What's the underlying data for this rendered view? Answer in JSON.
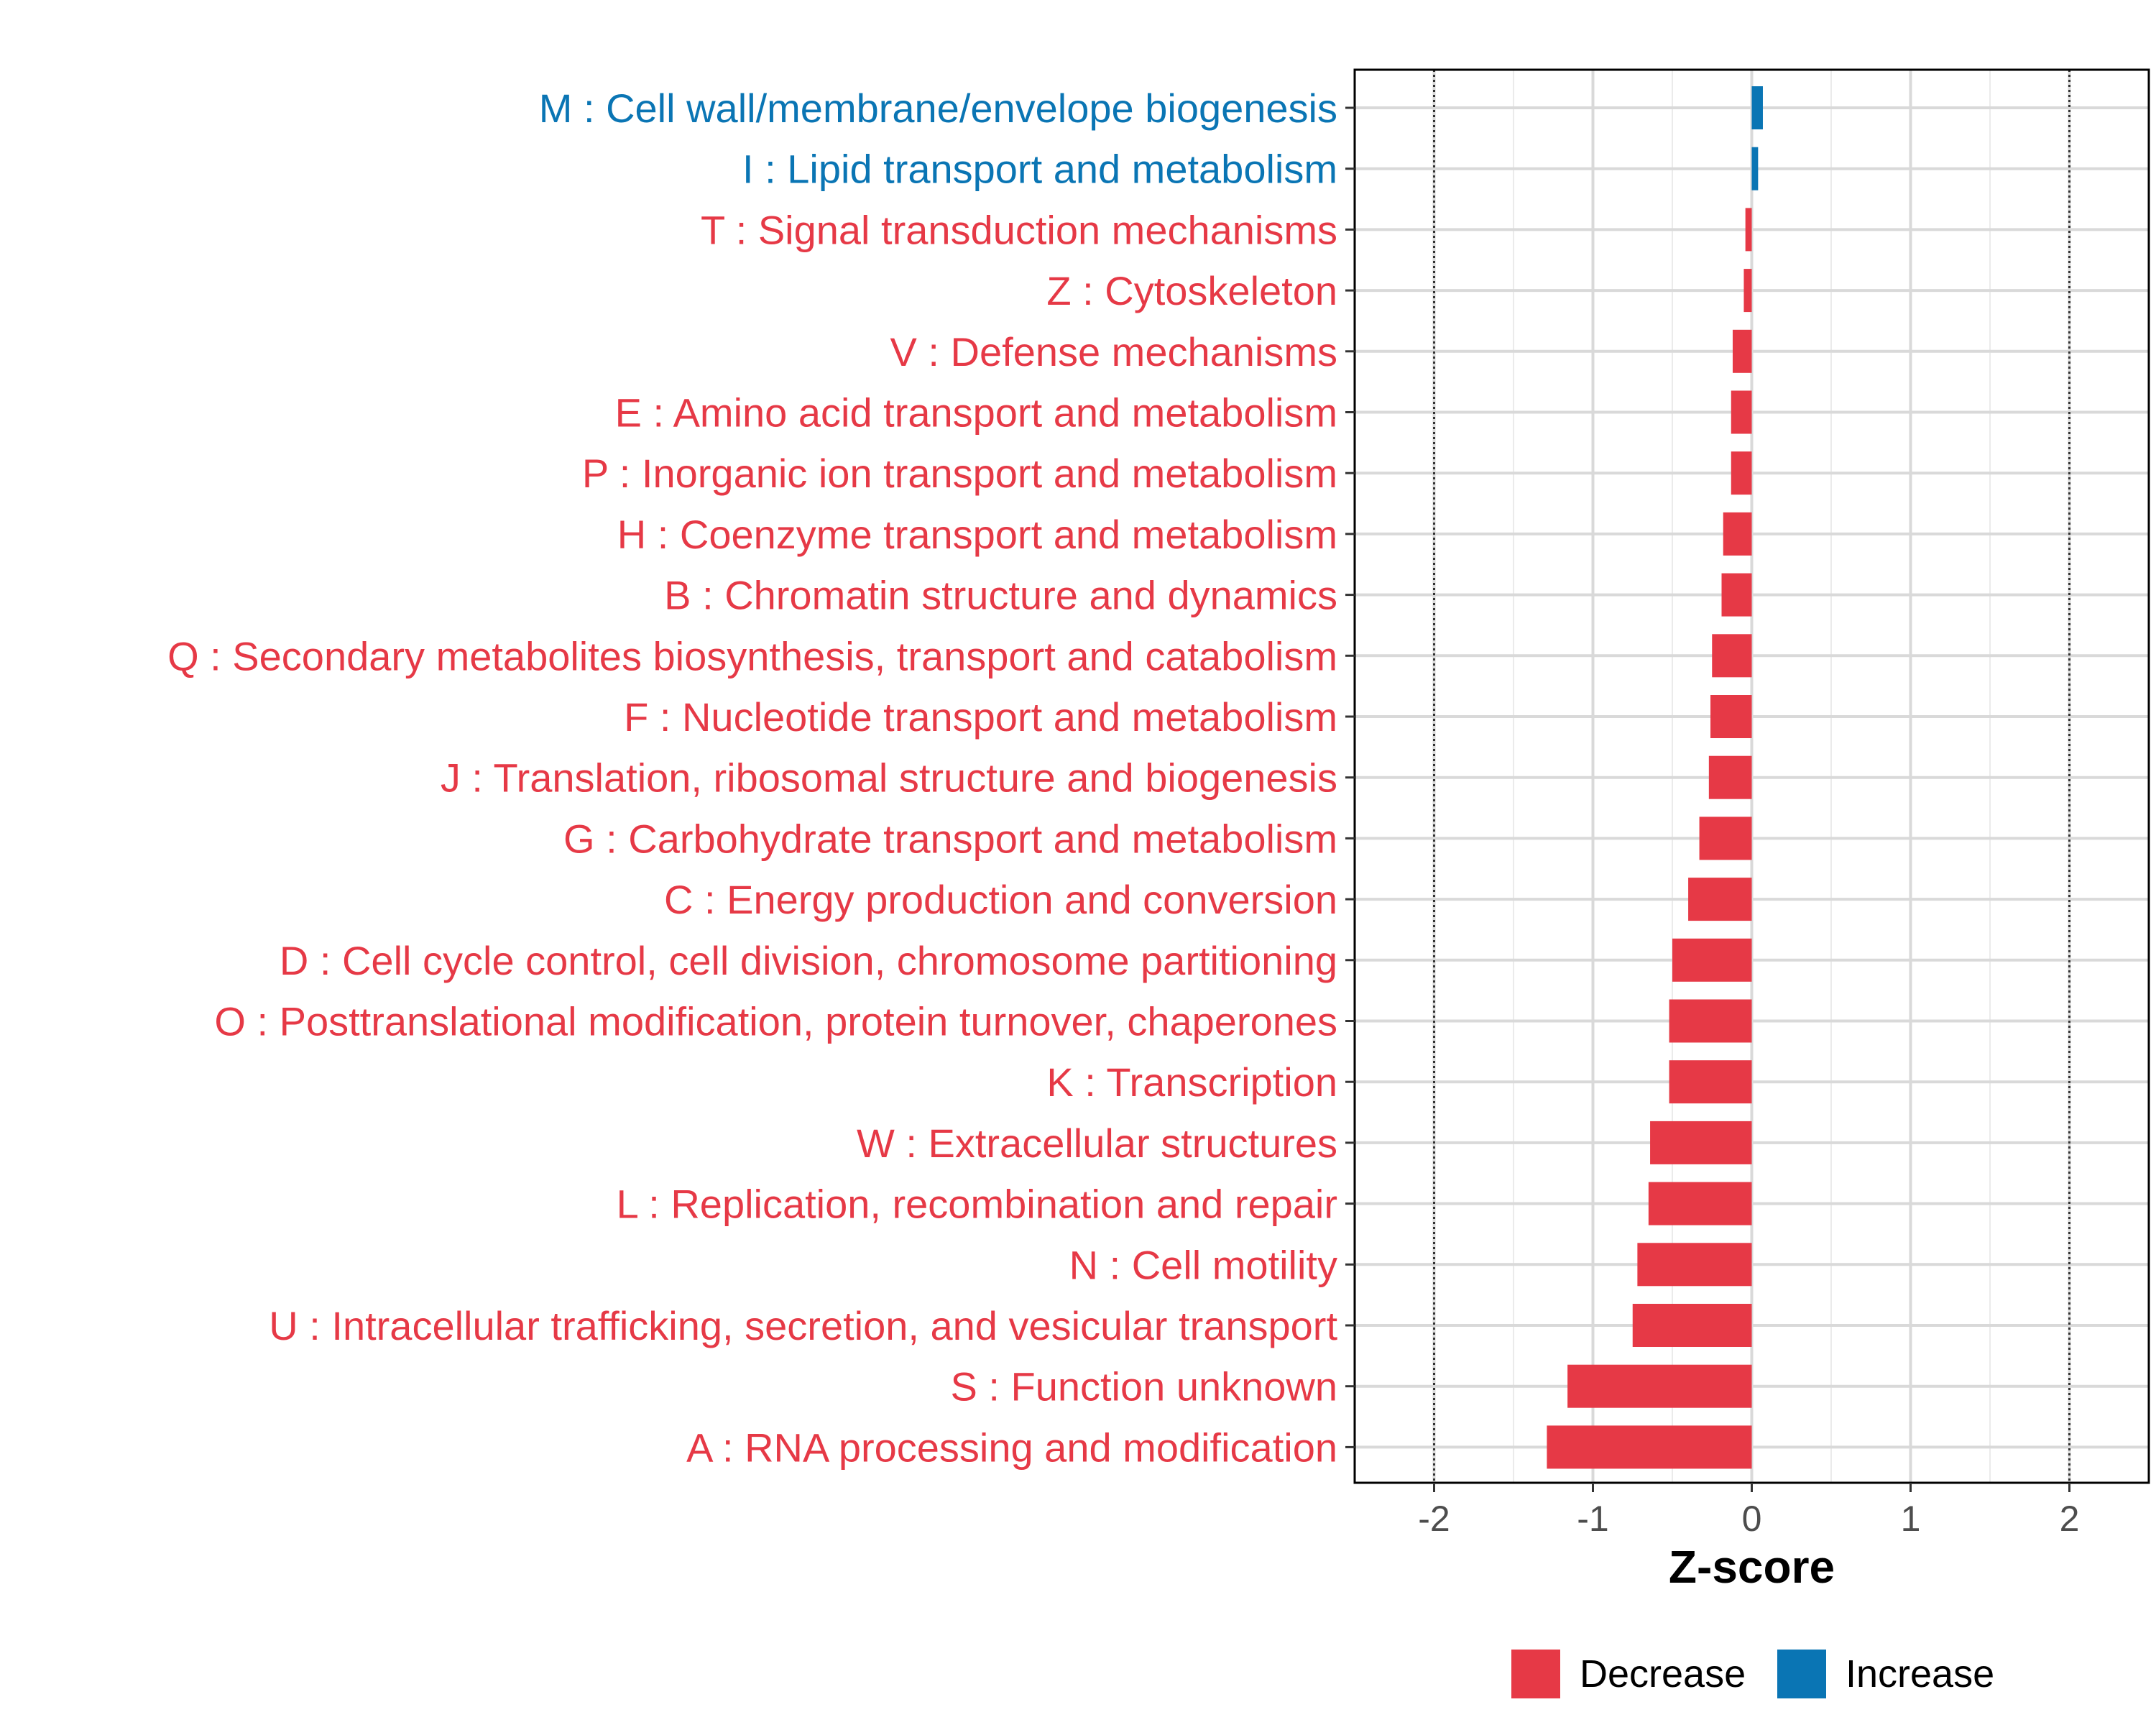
{
  "chart_data": {
    "type": "bar",
    "orientation": "horizontal",
    "xlabel": "Z-score",
    "xlim": [
      -2.5,
      2.5
    ],
    "xticks": [
      -2,
      -1,
      0,
      1,
      2
    ],
    "xtick_labels": [
      "-2",
      "-1",
      "0",
      "1",
      "2"
    ],
    "reference_lines": [
      -2,
      2
    ],
    "categories": [
      "M : Cell wall/membrane/envelope biogenesis",
      "I : Lipid transport and metabolism",
      "T : Signal transduction mechanisms",
      "Z : Cytoskeleton",
      "V : Defense mechanisms",
      "E : Amino acid transport and metabolism",
      "P : Inorganic ion transport and metabolism",
      "H : Coenzyme transport and metabolism",
      "B : Chromatin structure and dynamics",
      "Q : Secondary metabolites biosynthesis, transport and catabolism",
      "F : Nucleotide transport and metabolism",
      "J : Translation, ribosomal structure and biogenesis",
      "G : Carbohydrate transport and metabolism",
      "C : Energy production and conversion",
      "D : Cell cycle control, cell division, chromosome partitioning",
      "O : Posttranslational modification, protein turnover, chaperones",
      "K : Transcription",
      "W : Extracellular structures",
      "L : Replication, recombination and repair",
      "N : Cell motility",
      "U : Intracellular trafficking, secretion, and vesicular transport",
      "S : Function unknown",
      "A : RNA processing and modification"
    ],
    "values": [
      0.07,
      0.04,
      -0.04,
      -0.05,
      -0.12,
      -0.13,
      -0.13,
      -0.18,
      -0.19,
      -0.25,
      -0.26,
      -0.27,
      -0.33,
      -0.4,
      -0.5,
      -0.52,
      -0.52,
      -0.64,
      -0.65,
      -0.72,
      -0.75,
      -1.16,
      -1.29
    ],
    "groups": [
      "Increase",
      "Increase",
      "Decrease",
      "Decrease",
      "Decrease",
      "Decrease",
      "Decrease",
      "Decrease",
      "Decrease",
      "Decrease",
      "Decrease",
      "Decrease",
      "Decrease",
      "Decrease",
      "Decrease",
      "Decrease",
      "Decrease",
      "Decrease",
      "Decrease",
      "Decrease",
      "Decrease",
      "Decrease",
      "Decrease"
    ],
    "legend": {
      "placement": "bottom",
      "items": [
        {
          "label": "Decrease",
          "color": "#e63946"
        },
        {
          "label": "Increase",
          "color": "#0a75b4"
        }
      ]
    },
    "colors": {
      "Decrease": "#e63946",
      "Increase": "#0a75b4"
    },
    "grid": true
  }
}
